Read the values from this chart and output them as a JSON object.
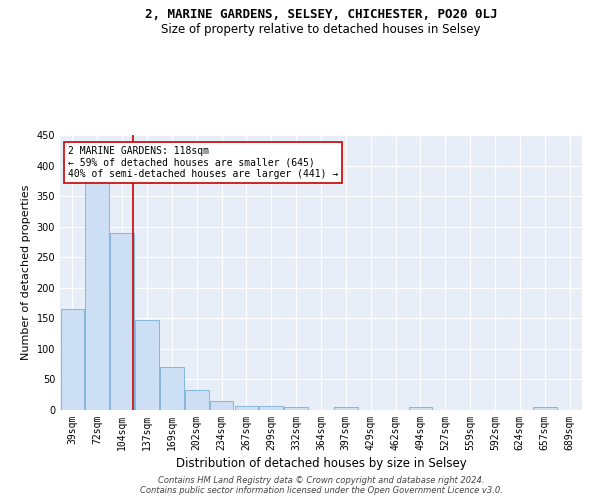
{
  "title": "2, MARINE GARDENS, SELSEY, CHICHESTER, PO20 0LJ",
  "subtitle": "Size of property relative to detached houses in Selsey",
  "xlabel": "Distribution of detached houses by size in Selsey",
  "ylabel": "Number of detached properties",
  "categories": [
    "39sqm",
    "72sqm",
    "104sqm",
    "137sqm",
    "169sqm",
    "202sqm",
    "234sqm",
    "267sqm",
    "299sqm",
    "332sqm",
    "364sqm",
    "397sqm",
    "429sqm",
    "462sqm",
    "494sqm",
    "527sqm",
    "559sqm",
    "592sqm",
    "624sqm",
    "657sqm",
    "689sqm"
  ],
  "values": [
    165,
    375,
    290,
    147,
    70,
    32,
    14,
    7,
    6,
    5,
    0,
    5,
    0,
    0,
    5,
    0,
    0,
    0,
    0,
    5,
    0
  ],
  "bar_color": "#ccdff4",
  "bar_edge_color": "#7aafd4",
  "background_color": "#e8eef8",
  "grid_color": "#ffffff",
  "fig_background": "#ffffff",
  "red_line_x": 2.42,
  "annotation_text": "2 MARINE GARDENS: 118sqm\n← 59% of detached houses are smaller (645)\n40% of semi-detached houses are larger (441) →",
  "annotation_box_facecolor": "#ffffff",
  "annotation_box_edgecolor": "#cc0000",
  "footer_text": "Contains HM Land Registry data © Crown copyright and database right 2024.\nContains public sector information licensed under the Open Government Licence v3.0.",
  "ylim": [
    0,
    450
  ],
  "yticks": [
    0,
    50,
    100,
    150,
    200,
    250,
    300,
    350,
    400,
    450
  ],
  "title_fontsize": 9,
  "subtitle_fontsize": 8.5,
  "xlabel_fontsize": 8.5,
  "ylabel_fontsize": 8,
  "tick_fontsize": 7,
  "annotation_fontsize": 7,
  "footer_fontsize": 6
}
